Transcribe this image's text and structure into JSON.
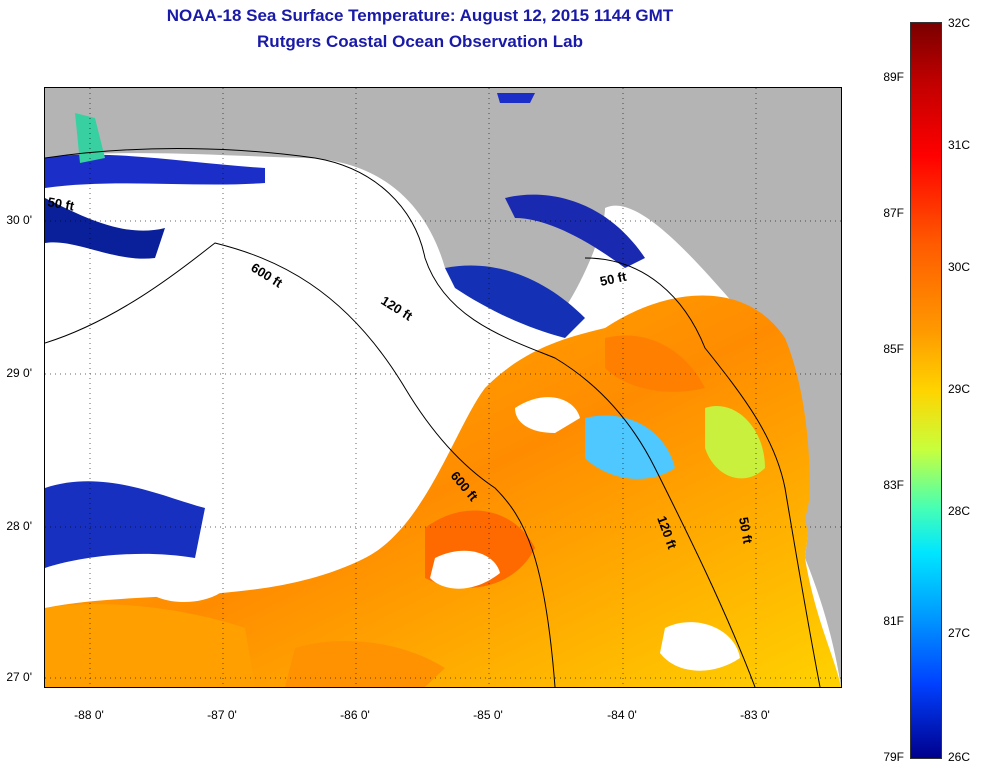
{
  "title": {
    "line1": "NOAA-18 Sea Surface Temperature:  August 12, 2015 1144 GMT",
    "line2": "Rutgers Coastal Ocean Observation Lab"
  },
  "axes": {
    "lat_labels": [
      "30 0'",
      "29 0'",
      "28 0'",
      "27 0'"
    ],
    "lon_labels": [
      "-88 0'",
      "-87 0'",
      "-86 0'",
      "-85 0'",
      "-84 0'",
      "-83 0'"
    ]
  },
  "contours": [
    "50 ft",
    "600 ft",
    "120 ft",
    "600 ft",
    "50 ft",
    "120 ft",
    "50 ft"
  ],
  "colorbar": {
    "fahrenheit": [
      "89F",
      "87F",
      "85F",
      "83F",
      "81F",
      "79F"
    ],
    "celsius": [
      "32C",
      "31C",
      "30C",
      "29C",
      "28C",
      "27C",
      "26C"
    ]
  },
  "colors": {
    "land": "#b4b4b4",
    "title": "#1a1aa8",
    "cloud": "#ffffff"
  }
}
